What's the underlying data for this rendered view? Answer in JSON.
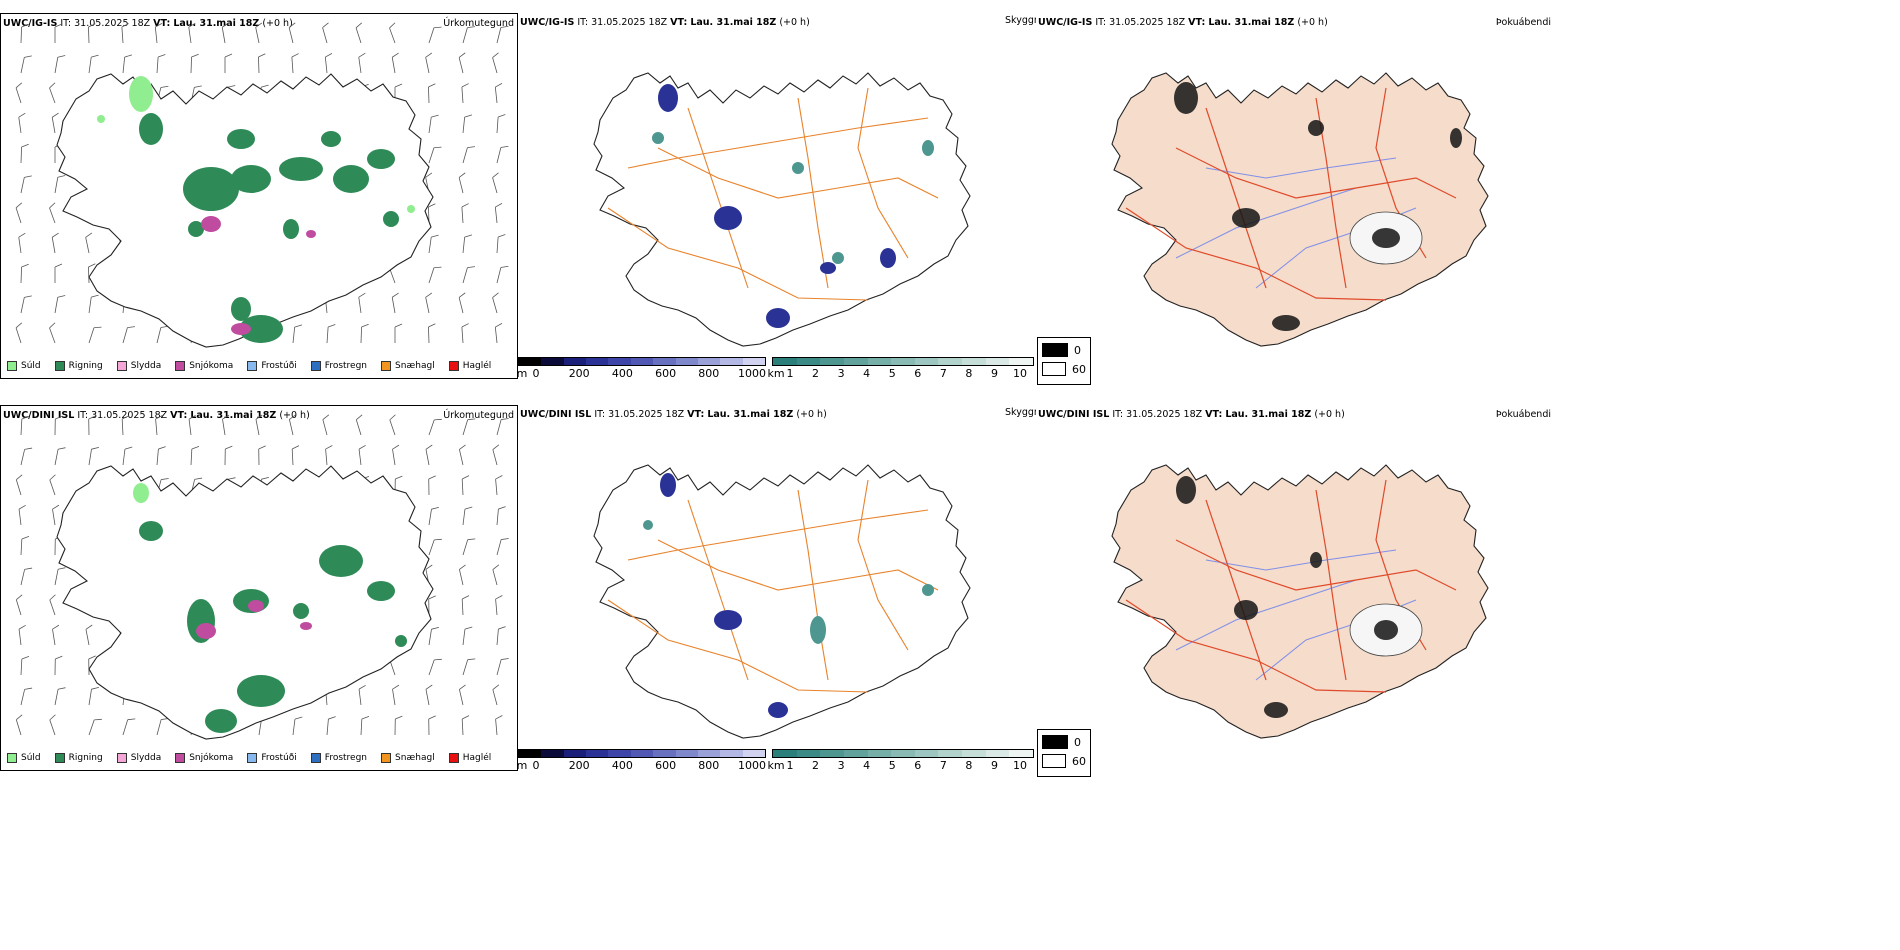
{
  "rows": [
    {
      "model": "UWC/IG-IS",
      "it_label": "IT:",
      "it_value": "31.05.2025 18Z",
      "vt_label": "VT:",
      "vt_value": "Lau. 31.mai 18Z",
      "lead": "(+0 h)"
    },
    {
      "model": "UWC/DINI ISL",
      "it_label": "IT:",
      "it_value": "31.05.2025 18Z",
      "vt_label": "VT:",
      "vt_value": "Lau. 31.mai 18Z",
      "lead": "(+0 h)"
    }
  ],
  "titles": {
    "precip_type": "Úrkomutegund",
    "visibility": "Skyggni",
    "fog": "Þokuábendi"
  },
  "precip_legend": [
    {
      "label": "Súld",
      "color": "#90ee90"
    },
    {
      "label": "Rigning",
      "color": "#2e8b57"
    },
    {
      "label": "Slydda",
      "color": "#f4a6d7"
    },
    {
      "label": "Snjókoma",
      "color": "#c04ca0"
    },
    {
      "label": "Frostúði",
      "color": "#87b8ee"
    },
    {
      "label": "Frostregn",
      "color": "#2f6fc0"
    },
    {
      "label": "Snæhagl",
      "color": "#f0961e"
    },
    {
      "label": "Haglél",
      "color": "#e81010"
    }
  ],
  "visibility_m": {
    "unit": "m",
    "ticks": [
      "0",
      "200",
      "400",
      "600",
      "800",
      "1000"
    ],
    "colors": [
      "#000000",
      "#0b0b3a",
      "#1a1f7a",
      "#2a3296",
      "#3d46a8",
      "#5058b4",
      "#6870c0",
      "#8088cc",
      "#9aa0d8",
      "#b4b8e4",
      "#d0d2f0"
    ]
  },
  "visibility_km": {
    "unit": "km",
    "ticks": [
      "1",
      "2",
      "3",
      "4",
      "5",
      "6",
      "7",
      "8",
      "9",
      "10"
    ],
    "colors": [
      "#2a7f7a",
      "#3b8a85",
      "#4e9690",
      "#62a29c",
      "#76aea8",
      "#8abab4",
      "#9ec6c0",
      "#b2d2cc",
      "#c6ded8",
      "#dae9e5",
      "#eef5f3"
    ]
  },
  "fog_legend": [
    {
      "label": "0",
      "color": "#000000"
    },
    {
      "label": "60",
      "color": "#ffffff"
    }
  ],
  "map_colors": {
    "land_fog": "#f5dccb",
    "roads_orange": "#e8822a",
    "roads_red": "#e04a2a",
    "rivers": "#8090e8",
    "rain": "#2e8b57",
    "snow": "#c04ca0",
    "drizzle": "#90ee90",
    "vis_low": "#2a3296",
    "vis_mid": "#4e9690"
  }
}
